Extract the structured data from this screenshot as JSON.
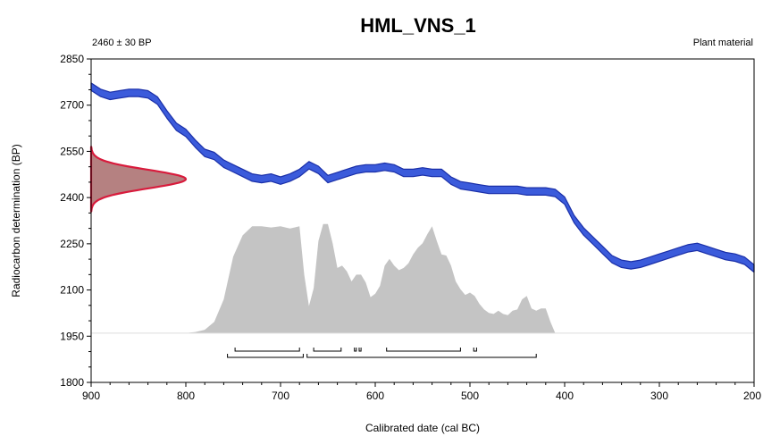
{
  "chart_data": {
    "type": "area",
    "title": "HML_VNS_1",
    "subtitle_left": "2460 ± 30 BP",
    "subtitle_right": "Plant material",
    "xlabel": "Calibrated date (cal BC)",
    "ylabel": "Radiocarbon determination (BP)",
    "xlim": [
      900,
      200
    ],
    "ylim": [
      1800,
      2850
    ],
    "x_ticks": [
      900,
      800,
      700,
      600,
      500,
      400,
      300,
      200
    ],
    "y_ticks": [
      1800,
      1950,
      2100,
      2250,
      2400,
      2550,
      2700,
      2850
    ],
    "colors": {
      "calibration_curve": "#3b5bdb",
      "calibration_curve_edge": "#1a2fa8",
      "measurement": "#d81b3c",
      "measurement_fill": "#a86b6b",
      "posterior": "#c4c4c4"
    },
    "calibration_curve": {
      "x": [
        900,
        890,
        880,
        870,
        860,
        850,
        840,
        830,
        820,
        810,
        800,
        790,
        780,
        770,
        760,
        750,
        740,
        730,
        720,
        710,
        700,
        690,
        680,
        670,
        660,
        650,
        640,
        630,
        620,
        610,
        600,
        590,
        580,
        570,
        560,
        550,
        540,
        530,
        520,
        510,
        500,
        490,
        480,
        470,
        460,
        450,
        440,
        430,
        420,
        410,
        400,
        390,
        380,
        370,
        360,
        350,
        340,
        330,
        320,
        310,
        300,
        290,
        280,
        270,
        260,
        250,
        240,
        230,
        220,
        210,
        200
      ],
      "y": [
        2760,
        2740,
        2730,
        2735,
        2740,
        2740,
        2735,
        2715,
        2670,
        2630,
        2610,
        2575,
        2545,
        2535,
        2510,
        2495,
        2480,
        2465,
        2460,
        2465,
        2455,
        2465,
        2480,
        2505,
        2490,
        2460,
        2470,
        2480,
        2490,
        2495,
        2495,
        2500,
        2495,
        2480,
        2480,
        2485,
        2480,
        2480,
        2455,
        2440,
        2435,
        2430,
        2425,
        2425,
        2425,
        2425,
        2420,
        2420,
        2420,
        2415,
        2390,
        2330,
        2290,
        2260,
        2230,
        2200,
        2185,
        2180,
        2185,
        2195,
        2205,
        2215,
        2225,
        2235,
        2240,
        2230,
        2220,
        2210,
        2205,
        2195,
        2170
      ],
      "band": 12
    },
    "measurement": {
      "mean": 2460,
      "sigma": 30,
      "max_width_years": 100
    },
    "posterior": {
      "x": [
        800,
        790,
        780,
        770,
        760,
        750,
        740,
        730,
        720,
        710,
        700,
        690,
        680,
        675,
        670,
        665,
        660,
        655,
        650,
        645,
        640,
        635,
        630,
        625,
        620,
        615,
        610,
        605,
        600,
        595,
        590,
        585,
        580,
        575,
        570,
        565,
        560,
        555,
        550,
        545,
        540,
        535,
        530,
        525,
        520,
        515,
        510,
        505,
        500,
        495,
        490,
        485,
        480,
        475,
        470,
        465,
        460,
        455,
        450,
        445,
        440,
        435,
        430,
        425,
        420,
        415,
        410,
        405,
        400
      ],
      "y": [
        0.0,
        0.01,
        0.03,
        0.1,
        0.3,
        0.68,
        0.87,
        0.95,
        0.95,
        0.94,
        0.95,
        0.93,
        0.95,
        0.52,
        0.24,
        0.4,
        0.82,
        0.97,
        0.97,
        0.8,
        0.58,
        0.6,
        0.55,
        0.46,
        0.52,
        0.52,
        0.45,
        0.32,
        0.35,
        0.42,
        0.6,
        0.66,
        0.6,
        0.56,
        0.58,
        0.62,
        0.7,
        0.76,
        0.8,
        0.88,
        0.95,
        0.82,
        0.7,
        0.69,
        0.6,
        0.46,
        0.39,
        0.34,
        0.36,
        0.33,
        0.26,
        0.21,
        0.18,
        0.17,
        0.2,
        0.17,
        0.16,
        0.2,
        0.21,
        0.3,
        0.33,
        0.22,
        0.2,
        0.22,
        0.22,
        0.1,
        0.0,
        0.0,
        0.0
      ],
      "baseline": 1960,
      "top": 2325
    },
    "ranges": {
      "sigma1": [
        [
          748,
          680
        ],
        [
          665,
          636
        ],
        [
          622,
          620
        ],
        [
          617,
          615
        ],
        [
          588,
          510
        ],
        [
          496,
          493
        ]
      ],
      "sigma2": [
        [
          756,
          676
        ],
        [
          672,
          430
        ]
      ]
    }
  }
}
